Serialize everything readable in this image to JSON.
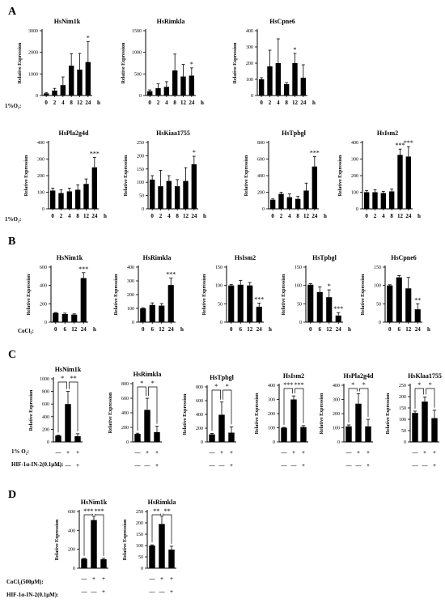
{
  "panel_letters": [
    "A",
    "B",
    "C",
    "D"
  ],
  "y_label": "Relative Expression",
  "hour_unit": "h",
  "condition_labels": {
    "o2_timecourse": "1%O₂:",
    "cocl2_timecourse": "CoCl₂:",
    "o2_treatment": "1% O₂:",
    "inhibitor": "HIF-1α-IN-2(0.1μM):",
    "cocl2_treatment": "CoCl₂(500μM):"
  },
  "treatment_signs": {
    "row1": [
      "—",
      "+",
      "+"
    ],
    "row2": [
      "—",
      "—",
      "+"
    ]
  },
  "chart_data": [
    {
      "panel": "A",
      "type": "bar",
      "title": "HsNim1k",
      "categories": [
        "0",
        "2",
        "4",
        "8",
        "12",
        "24"
      ],
      "values": [
        100,
        230,
        480,
        1380,
        1200,
        1550
      ],
      "errors": [
        40,
        100,
        380,
        550,
        750,
        950
      ],
      "ylim": [
        0,
        3000
      ],
      "yticks": [
        0,
        1000,
        2000,
        3000
      ],
      "significance": [
        "",
        "",
        "",
        "",
        "",
        "*"
      ]
    },
    {
      "panel": "A",
      "type": "bar",
      "title": "HsRimkla",
      "categories": [
        "0",
        "2",
        "4",
        "8",
        "12",
        "24"
      ],
      "values": [
        100,
        170,
        200,
        580,
        440,
        460
      ],
      "errors": [
        30,
        100,
        120,
        380,
        280,
        180
      ],
      "ylim": [
        0,
        1500
      ],
      "yticks": [
        0,
        500,
        1000,
        1500
      ],
      "significance": [
        "",
        "",
        "",
        "",
        "",
        "*"
      ]
    },
    {
      "panel": "A",
      "type": "bar",
      "title": "HsCpne6",
      "categories": [
        "0",
        "2",
        "4",
        "8",
        "12",
        "24"
      ],
      "values": [
        100,
        180,
        200,
        70,
        200,
        110
      ],
      "errors": [
        10,
        100,
        150,
        10,
        60,
        80
      ],
      "ylim": [
        0,
        400
      ],
      "yticks": [
        0,
        100,
        200,
        300,
        400
      ],
      "significance": [
        "",
        "",
        "",
        "",
        "*",
        ""
      ]
    },
    {
      "panel": "A",
      "type": "bar",
      "title": "HsPla2g4d",
      "categories": [
        "0",
        "2",
        "4",
        "8",
        "12",
        "24"
      ],
      "values": [
        110,
        95,
        105,
        115,
        150,
        250
      ],
      "errors": [
        15,
        20,
        20,
        30,
        30,
        60
      ],
      "ylim": [
        0,
        400
      ],
      "yticks": [
        0,
        100,
        200,
        300,
        400
      ],
      "significance": [
        "",
        "",
        "",
        "",
        "",
        "***"
      ]
    },
    {
      "panel": "A",
      "type": "bar",
      "title": "HsKiaa1755",
      "categories": [
        "0",
        "2",
        "4",
        "8",
        "12",
        "24"
      ],
      "values": [
        110,
        85,
        105,
        85,
        105,
        168
      ],
      "errors": [
        15,
        60,
        20,
        25,
        50,
        30
      ],
      "ylim": [
        0,
        250
      ],
      "yticks": [
        0,
        50,
        100,
        150,
        200,
        250
      ],
      "significance": [
        "",
        "",
        "",
        "",
        "",
        "*"
      ]
    },
    {
      "panel": "A",
      "type": "bar",
      "title": "HsTpbgl",
      "categories": [
        "0",
        "2",
        "4",
        "8",
        "12",
        "24"
      ],
      "values": [
        110,
        180,
        140,
        120,
        220,
        510
      ],
      "errors": [
        10,
        20,
        40,
        30,
        90,
        120
      ],
      "ylim": [
        0,
        800
      ],
      "yticks": [
        0,
        200,
        400,
        600,
        800
      ],
      "significance": [
        "",
        "",
        "",
        "",
        "",
        "***"
      ]
    },
    {
      "panel": "A",
      "type": "bar",
      "title": "HsIsm2",
      "categories": [
        "0",
        "2",
        "4",
        "8",
        "12",
        "24"
      ],
      "values": [
        100,
        100,
        95,
        105,
        325,
        315
      ],
      "errors": [
        10,
        15,
        10,
        15,
        35,
        60
      ],
      "ylim": [
        0,
        400
      ],
      "yticks": [
        0,
        100,
        200,
        300,
        400
      ],
      "significance": [
        "",
        "",
        "",
        "",
        "***",
        "***"
      ]
    },
    {
      "panel": "B",
      "type": "bar",
      "title": "HsNim1k",
      "categories": [
        "0",
        "6",
        "12",
        "24"
      ],
      "values": [
        100,
        88,
        82,
        480
      ],
      "errors": [
        5,
        10,
        8,
        60
      ],
      "ylim": [
        0,
        600
      ],
      "yticks": [
        0,
        200,
        400,
        600
      ],
      "significance": [
        "",
        "",
        "",
        "***"
      ]
    },
    {
      "panel": "B",
      "type": "bar",
      "title": "HsRimkla",
      "categories": [
        "0",
        "6",
        "12",
        "24"
      ],
      "values": [
        100,
        125,
        120,
        270
      ],
      "errors": [
        5,
        15,
        15,
        50
      ],
      "ylim": [
        0,
        400
      ],
      "yticks": [
        0,
        100,
        200,
        300,
        400
      ],
      "significance": [
        "",
        "",
        "",
        "***"
      ]
    },
    {
      "panel": "B",
      "type": "bar",
      "title": "HsIsm2",
      "categories": [
        "0",
        "6",
        "12",
        "24"
      ],
      "values": [
        100,
        102,
        100,
        42
      ],
      "errors": [
        3,
        12,
        8,
        10
      ],
      "ylim": [
        0,
        150
      ],
      "yticks": [
        0,
        50,
        100,
        150
      ],
      "significance": [
        "",
        "",
        "",
        "***"
      ]
    },
    {
      "panel": "B",
      "type": "bar",
      "title": "HsTpbgl",
      "categories": [
        "0",
        "6",
        "12",
        "24"
      ],
      "values": [
        102,
        82,
        68,
        18
      ],
      "errors": [
        3,
        14,
        20,
        8
      ],
      "ylim": [
        0,
        150
      ],
      "yticks": [
        0,
        50,
        100,
        150
      ],
      "significance": [
        "",
        "",
        "*",
        "***"
      ]
    },
    {
      "panel": "B",
      "type": "bar",
      "title": "HsCpne6",
      "categories": [
        "0",
        "6",
        "12",
        "24"
      ],
      "values": [
        100,
        122,
        92,
        35
      ],
      "errors": [
        2,
        5,
        30,
        15
      ],
      "ylim": [
        0,
        150
      ],
      "yticks": [
        0,
        50,
        100,
        150
      ],
      "significance": [
        "",
        "",
        "",
        "**"
      ]
    },
    {
      "panel": "C",
      "type": "bar",
      "title": "HsNim1k",
      "values": [
        100,
        600,
        90
      ],
      "errors": [
        10,
        200,
        40
      ],
      "ylim": [
        0,
        1000
      ],
      "yticks": [
        0,
        200,
        400,
        600,
        800,
        1000
      ],
      "comparisons": [
        {
          "a": 0,
          "b": 1,
          "label": "*"
        },
        {
          "a": 1,
          "b": 2,
          "label": "**"
        }
      ]
    },
    {
      "panel": "C",
      "type": "bar",
      "title": "HsRimkla",
      "values": [
        110,
        440,
        135
      ],
      "errors": [
        10,
        160,
        80
      ],
      "ylim": [
        0,
        800
      ],
      "yticks": [
        0,
        200,
        400,
        600,
        800
      ],
      "comparisons": [
        {
          "a": 0,
          "b": 1,
          "label": "*"
        },
        {
          "a": 1,
          "b": 2,
          "label": "*"
        }
      ]
    },
    {
      "panel": "C",
      "type": "bar",
      "title": "HsTpbgl",
      "values": [
        110,
        395,
        135
      ],
      "errors": [
        15,
        185,
        85
      ],
      "ylim": [
        0,
        800
      ],
      "yticks": [
        0,
        200,
        400,
        600,
        800
      ],
      "comparisons": [
        {
          "a": 0,
          "b": 1,
          "label": "*"
        },
        {
          "a": 1,
          "b": 2,
          "label": "*"
        }
      ]
    },
    {
      "panel": "C",
      "type": "bar",
      "title": "HsIsm2",
      "values": [
        100,
        300,
        105
      ],
      "errors": [
        3,
        25,
        10
      ],
      "ylim": [
        0,
        400
      ],
      "yticks": [
        0,
        100,
        200,
        300,
        400
      ],
      "comparisons": [
        {
          "a": 0,
          "b": 1,
          "label": "***"
        },
        {
          "a": 1,
          "b": 2,
          "label": "***"
        }
      ]
    },
    {
      "panel": "C",
      "type": "bar",
      "title": "HsPla2g4d",
      "values": [
        110,
        270,
        110
      ],
      "errors": [
        10,
        70,
        50
      ],
      "ylim": [
        0,
        400
      ],
      "yticks": [
        0,
        100,
        200,
        300,
        400
      ],
      "comparisons": [
        {
          "a": 0,
          "b": 1,
          "label": "*"
        },
        {
          "a": 1,
          "b": 2,
          "label": "*"
        }
      ]
    },
    {
      "panel": "C",
      "type": "bar",
      "title": "HsKlaa1755",
      "values": [
        128,
        178,
        105
      ],
      "errors": [
        8,
        20,
        35
      ],
      "ylim": [
        0,
        250
      ],
      "yticks": [
        0,
        50,
        100,
        150,
        200,
        250
      ],
      "comparisons": [
        {
          "a": 0,
          "b": 1,
          "label": "*"
        },
        {
          "a": 1,
          "b": 2,
          "label": "*"
        }
      ]
    },
    {
      "panel": "D",
      "type": "bar",
      "title": "HsNim1k",
      "values": [
        100,
        510,
        95
      ],
      "errors": [
        5,
        40,
        10
      ],
      "ylim": [
        0,
        600
      ],
      "yticks": [
        0,
        200,
        400,
        600
      ],
      "comparisons": [
        {
          "a": 0,
          "b": 1,
          "label": "***"
        },
        {
          "a": 1,
          "b": 2,
          "label": "***"
        }
      ]
    },
    {
      "panel": "D",
      "type": "bar",
      "title": "HsRimkla",
      "values": [
        100,
        195,
        82
      ],
      "errors": [
        3,
        35,
        15
      ],
      "ylim": [
        0,
        250
      ],
      "yticks": [
        0,
        50,
        100,
        150,
        200,
        250
      ],
      "comparisons": [
        {
          "a": 0,
          "b": 1,
          "label": "**"
        },
        {
          "a": 1,
          "b": 2,
          "label": "**"
        }
      ]
    }
  ]
}
